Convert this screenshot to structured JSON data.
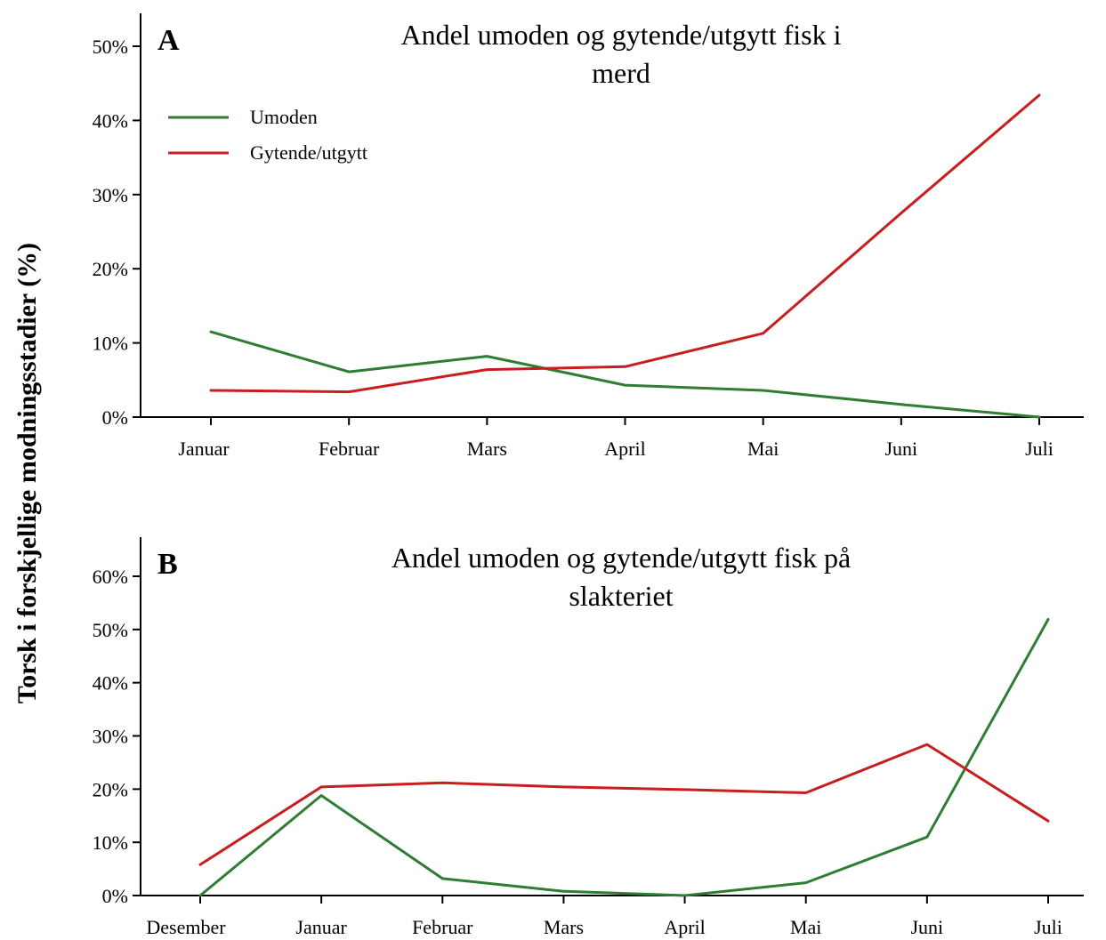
{
  "ylabel": "Torsk i forskjellige modningsstadier (%)",
  "chart_data": [
    {
      "type": "line",
      "panel": "A",
      "title_lines": [
        "Andel umoden og gytende/utgytt fisk i",
        "merd"
      ],
      "categories": [
        "Januar",
        "Februar",
        "Mars",
        "April",
        "Mai",
        "Juni",
        "Juli"
      ],
      "ylim": [
        0,
        50
      ],
      "yticks": [
        0,
        10,
        20,
        30,
        40,
        50
      ],
      "ytick_labels": [
        "0%",
        "10%",
        "20%",
        "30%",
        "40%",
        "50%"
      ],
      "legend_position": "upper-left",
      "grid": false,
      "series": [
        {
          "name": "Umoden",
          "color": "#2e7d32",
          "values": [
            11.5,
            6.1,
            8.2,
            4.3,
            3.6,
            1.7,
            0.0
          ]
        },
        {
          "name": "Gytende/utgytt",
          "color": "#c81e1e",
          "values": [
            3.6,
            3.4,
            6.4,
            6.8,
            11.3,
            27.5,
            43.4
          ]
        }
      ]
    },
    {
      "type": "line",
      "panel": "B",
      "title_lines": [
        "Andel umoden og gytende/utgytt fisk på",
        "slakteriet"
      ],
      "categories": [
        "Desember",
        "Januar",
        "Februar",
        "Mars",
        "April",
        "Mai",
        "Juni",
        "Juli"
      ],
      "ylim": [
        0,
        60
      ],
      "yticks": [
        0,
        10,
        20,
        30,
        40,
        50,
        60
      ],
      "ytick_labels": [
        "0%",
        "10%",
        "20%",
        "30%",
        "40%",
        "50%",
        "60%"
      ],
      "grid": false,
      "series": [
        {
          "color": "#2e7d32",
          "values": [
            0.0,
            18.8,
            3.2,
            0.8,
            0.0,
            2.4,
            11.0,
            51.9
          ]
        },
        {
          "color": "#c81e1e",
          "values": [
            5.8,
            20.4,
            21.2,
            20.4,
            19.9,
            19.3,
            28.4,
            14.0
          ]
        }
      ]
    }
  ]
}
